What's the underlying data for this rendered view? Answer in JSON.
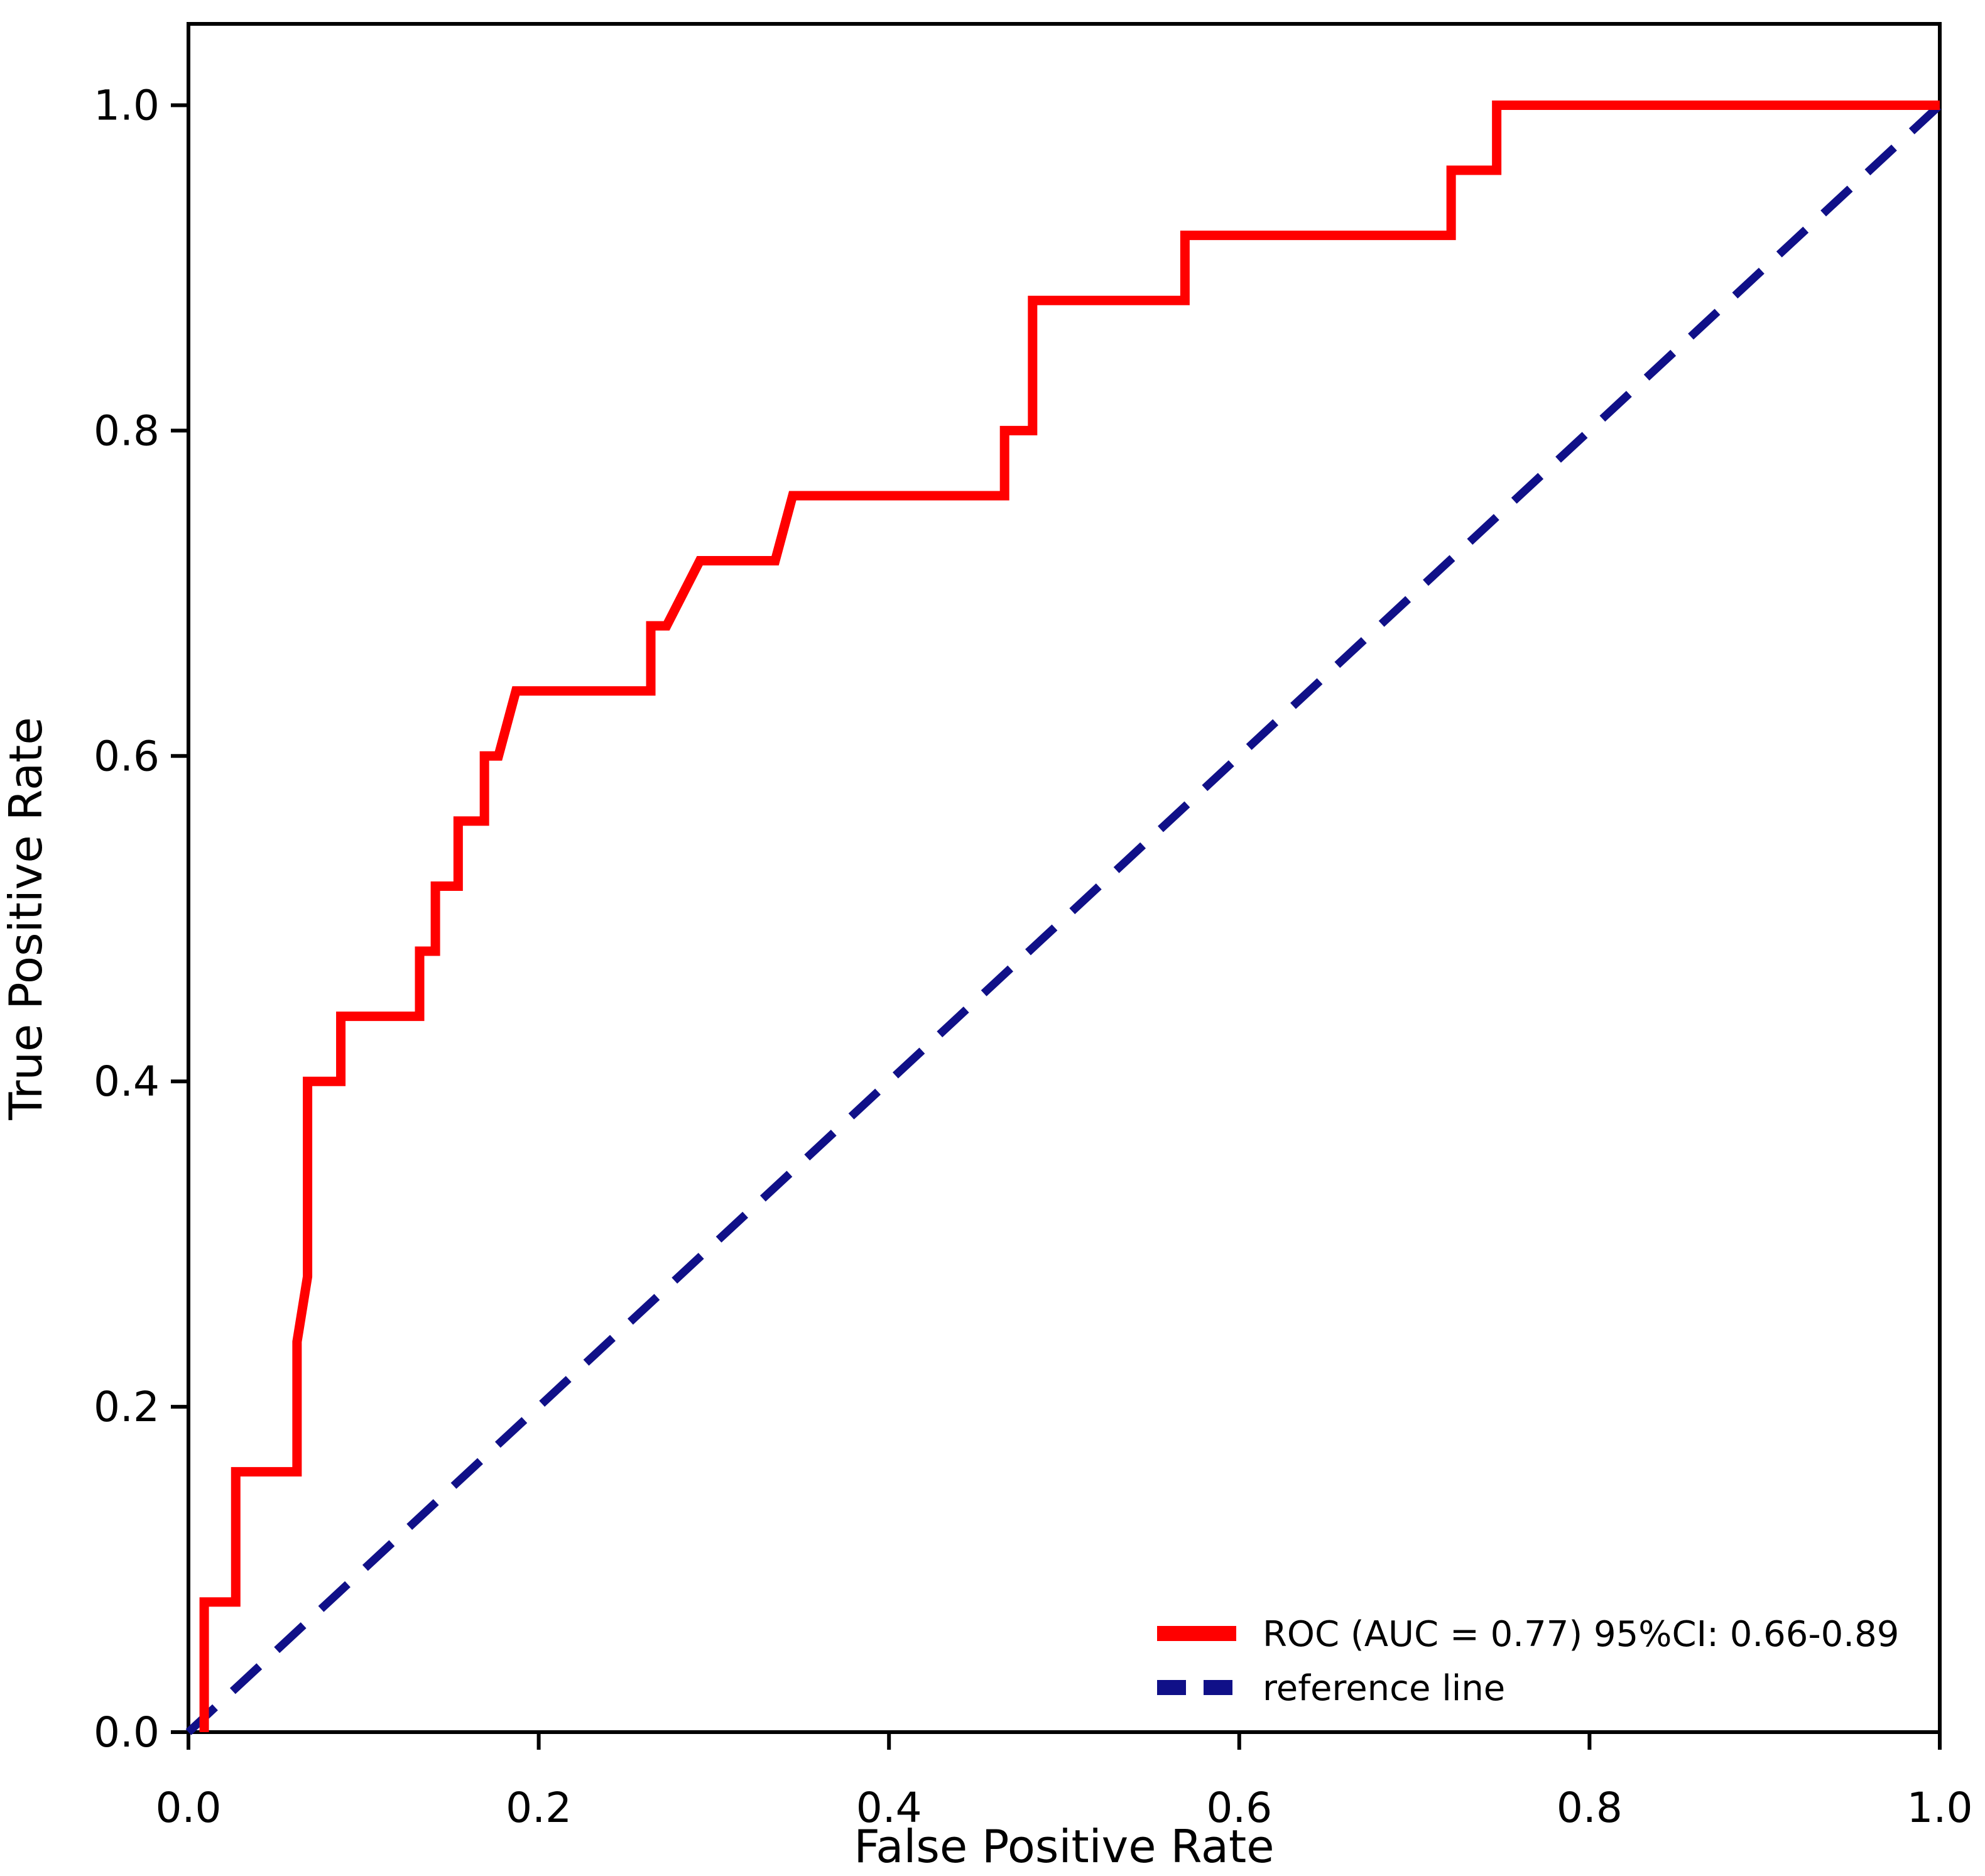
{
  "chart_data": {
    "type": "line",
    "subtype": "roc-curve",
    "title": "",
    "xlabel": "False Positive Rate",
    "ylabel": "True Positive Rate",
    "xlim": [
      0.0,
      1.0
    ],
    "ylim": [
      0.0,
      1.05
    ],
    "grid": false,
    "background_color": "#ffffff",
    "axis_color": "#000000",
    "x_ticks": [
      0.0,
      0.2,
      0.4,
      0.6,
      0.8,
      1.0
    ],
    "y_ticks": [
      0.0,
      0.2,
      0.4,
      0.6,
      0.8,
      1.0
    ],
    "tick_decimals": 1,
    "legend_position": "lower right",
    "legend_frame": false,
    "auc": "0.77",
    "auc_ci_95": "0.66-0.89",
    "series": [
      {
        "name": "ROC (AUC = 0.77) 95%CI: 0.66-0.89",
        "color": "#ff0000",
        "style": "solid",
        "points": [
          [
            0.009,
            0.0
          ],
          [
            0.009,
            0.08
          ],
          [
            0.027,
            0.08
          ],
          [
            0.027,
            0.16
          ],
          [
            0.062,
            0.16
          ],
          [
            0.062,
            0.24
          ],
          [
            0.068,
            0.28
          ],
          [
            0.068,
            0.4
          ],
          [
            0.087,
            0.4
          ],
          [
            0.087,
            0.44
          ],
          [
            0.132,
            0.44
          ],
          [
            0.132,
            0.48
          ],
          [
            0.141,
            0.48
          ],
          [
            0.141,
            0.52
          ],
          [
            0.154,
            0.52
          ],
          [
            0.154,
            0.56
          ],
          [
            0.169,
            0.56
          ],
          [
            0.169,
            0.6
          ],
          [
            0.177,
            0.6
          ],
          [
            0.187,
            0.64
          ],
          [
            0.264,
            0.64
          ],
          [
            0.264,
            0.68
          ],
          [
            0.273,
            0.68
          ],
          [
            0.292,
            0.72
          ],
          [
            0.335,
            0.72
          ],
          [
            0.345,
            0.76
          ],
          [
            0.466,
            0.76
          ],
          [
            0.466,
            0.8
          ],
          [
            0.482,
            0.8
          ],
          [
            0.482,
            0.88
          ],
          [
            0.569,
            0.88
          ],
          [
            0.569,
            0.92
          ],
          [
            0.721,
            0.92
          ],
          [
            0.721,
            0.96
          ],
          [
            0.747,
            0.96
          ],
          [
            0.747,
            1.0
          ],
          [
            1.0,
            1.0
          ]
        ]
      },
      {
        "name": "reference line",
        "color": "#101088",
        "style": "dashed",
        "points": [
          [
            0.0,
            0.0
          ],
          [
            1.0,
            1.0
          ]
        ]
      }
    ]
  }
}
